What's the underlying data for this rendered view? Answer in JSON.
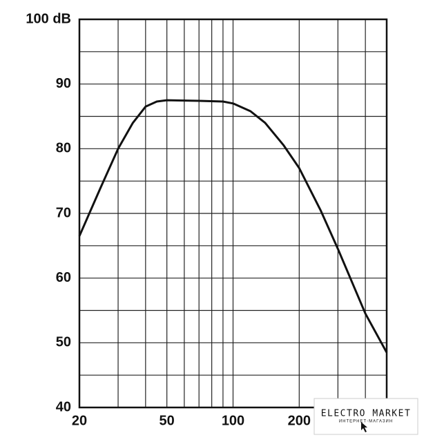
{
  "chart_data": {
    "type": "line",
    "ylim": [
      40,
      100
    ],
    "yticks": [
      40,
      50,
      60,
      70,
      80,
      90,
      {
        "value": 100,
        "label": "100 dB"
      }
    ],
    "yminor": [
      45,
      55,
      65,
      75,
      85,
      95
    ],
    "xlim": [
      20,
      500
    ],
    "xscale": "log",
    "xticks": [
      20,
      50,
      100,
      {
        "value": 200,
        "label": "200"
      }
    ],
    "xminor": [
      30,
      40,
      60,
      70,
      80,
      90,
      300,
      400
    ],
    "grid": true,
    "series": [
      {
        "color": "#111111",
        "x": [
          20,
          25,
          30,
          35,
          40,
          45,
          50,
          70,
          90,
          100,
          120,
          140,
          170,
          200,
          250,
          300,
          400,
          500
        ],
        "values": [
          66.5,
          74,
          80,
          84,
          86.5,
          87.3,
          87.5,
          87.4,
          87.3,
          87,
          85.8,
          84,
          80.5,
          77,
          70.5,
          64.5,
          54.5,
          48.5
        ]
      }
    ]
  },
  "watermark": {
    "title": "ELECTRO MARKET",
    "subtitle": "ИНТЕРНЕТ-МАГАЗИН"
  }
}
